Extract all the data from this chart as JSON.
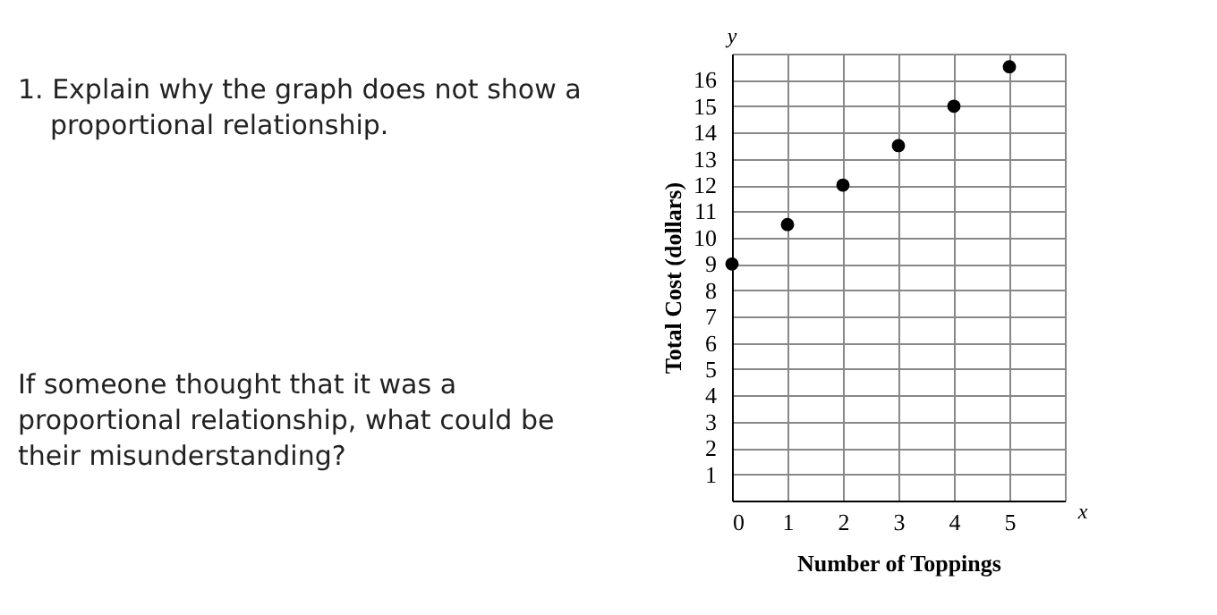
{
  "chart_data": {
    "type": "scatter",
    "xlabel": "Number of Toppings",
    "ylabel": "Total Cost (dollars)",
    "x": [
      0,
      1,
      2,
      3,
      4,
      5
    ],
    "values": [
      9,
      10.5,
      12,
      13.5,
      15,
      16.5
    ],
    "color": "#000000",
    "marker": "circle",
    "grid": true,
    "xlim": [
      0,
      6
    ],
    "xticks": [
      0,
      1,
      2,
      3,
      4,
      5,
      {
        "value": 6,
        "label": null
      }
    ],
    "ylim": [
      0,
      17
    ],
    "yticks": [
      {
        "value": 0,
        "label": null
      },
      1,
      2,
      3,
      4,
      5,
      6,
      7,
      8,
      9,
      10,
      11,
      12,
      13,
      14,
      15,
      16,
      {
        "value": 17,
        "label": null
      }
    ],
    "annotations": [
      "1. Explain why the graph does not show a proportional relationship.",
      "If someone thought that it was a proportional relationship, what could be their misunderstanding?",
      "x",
      "y"
    ]
  }
}
